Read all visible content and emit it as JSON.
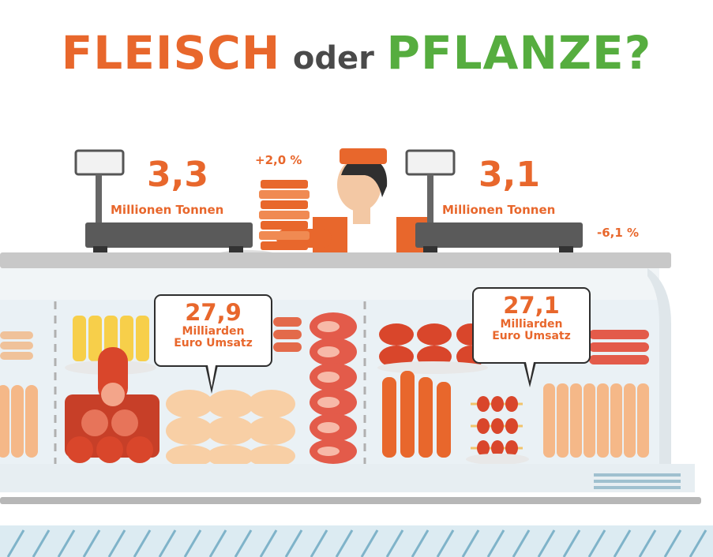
{
  "title": {
    "meat": "FLEISCH",
    "connector": "oder",
    "plant": "PFLANZE?"
  },
  "left_scale": {
    "value": "3,3",
    "unit": "Millionen Tonnen",
    "change": "+2,0 %"
  },
  "right_scale": {
    "value": "3,1",
    "unit": "Millionen Tonnen",
    "change": "-6,1 %"
  },
  "left_bubble": {
    "value": "27,9",
    "line1": "Milliarden",
    "line2": "Euro Umsatz"
  },
  "right_bubble": {
    "value": "27,1",
    "line1": "Milliarden",
    "line2": "Euro Umsatz"
  },
  "colors": {
    "meat_orange": "#e8672c",
    "plant_green": "#56ad3f",
    "dark_text": "#4a4a4a",
    "counter_grey": "#c8c8c8"
  }
}
